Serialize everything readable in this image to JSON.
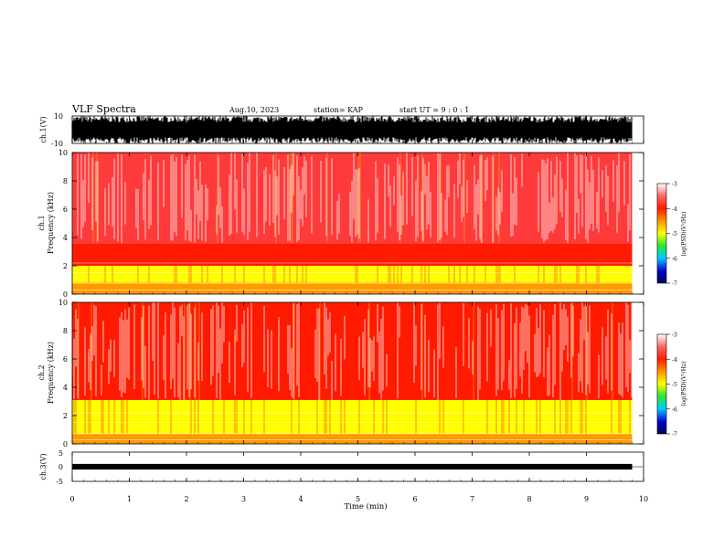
{
  "header": {
    "title": "VLF Spectra",
    "date": "Aug.10, 2023",
    "station": "station= KAP",
    "start": "start  UT =   9 : 0  : 1"
  },
  "colorbar": {
    "label": "log(PSD)(V²/Hz)",
    "ticks": [
      "-3",
      "-4",
      "-5",
      "-6",
      "-7"
    ],
    "colors": [
      "#ffffff",
      "#ff3a3a",
      "#ff1a00",
      "#ff9900",
      "#ffff00",
      "#2ee62e",
      "#00c8ff",
      "#0000cc",
      "#000055"
    ]
  },
  "chart_data": [
    {
      "type": "line",
      "panel": "ch1-waveform",
      "ylabel": "ch.1(V)",
      "ylim": [
        -10,
        10
      ],
      "ytick_labels": [
        "10",
        "-10"
      ],
      "xlim": [
        0,
        10
      ],
      "x_extent": [
        0,
        9.8
      ],
      "description_values": {
        "typical_min": -10,
        "typical_max": 10
      }
    },
    {
      "type": "heatmap",
      "panel": "ch1-spectrogram",
      "ylabel": "ch.1\nFrequency (kHz)",
      "ylim": [
        0,
        10
      ],
      "ytick_labels": [
        "0",
        "2",
        "4",
        "6",
        "8",
        "10"
      ],
      "xlim": [
        0,
        10
      ],
      "x_extent": [
        0,
        9.8
      ],
      "colorbar_range": [
        -7,
        -3
      ],
      "bands": [
        {
          "from_khz": 0,
          "to_khz": 0.8,
          "level": -4.3
        },
        {
          "from_khz": 0.8,
          "to_khz": 2.0,
          "level": -4.8
        },
        {
          "from_khz": 2.0,
          "to_khz": 3.6,
          "level": -4.2
        },
        {
          "from_khz": 3.6,
          "to_khz": 10,
          "level": -3.4
        }
      ]
    },
    {
      "type": "heatmap",
      "panel": "ch2-spectrogram",
      "ylabel": "ch.2\nFrequency (kHz)",
      "ylim": [
        0,
        10
      ],
      "ytick_labels": [
        "0",
        "2",
        "4",
        "6",
        "8",
        "10"
      ],
      "xlim": [
        0,
        10
      ],
      "x_extent": [
        0,
        9.8
      ],
      "colorbar_range": [
        -7,
        -3
      ],
      "bands": [
        {
          "from_khz": 0,
          "to_khz": 0.7,
          "level": -4.4
        },
        {
          "from_khz": 0.7,
          "to_khz": 3.1,
          "level": -5.2
        },
        {
          "from_khz": 3.1,
          "to_khz": 10,
          "level": -3.8
        }
      ]
    },
    {
      "type": "line",
      "panel": "ch3-waveform",
      "ylabel": "ch.3(V)",
      "ylim": [
        -5,
        5
      ],
      "ytick_labels": [
        "5",
        "0",
        "-5"
      ],
      "xlim": [
        0,
        10
      ],
      "x_extent": [
        0,
        9.8
      ],
      "xlabel": "Time (min)",
      "xtick_labels": [
        "0",
        "1",
        "2",
        "3",
        "4",
        "5",
        "6",
        "7",
        "8",
        "9",
        "10"
      ],
      "description_values": {
        "typical_min": -0.5,
        "typical_max": 0.5
      }
    }
  ]
}
